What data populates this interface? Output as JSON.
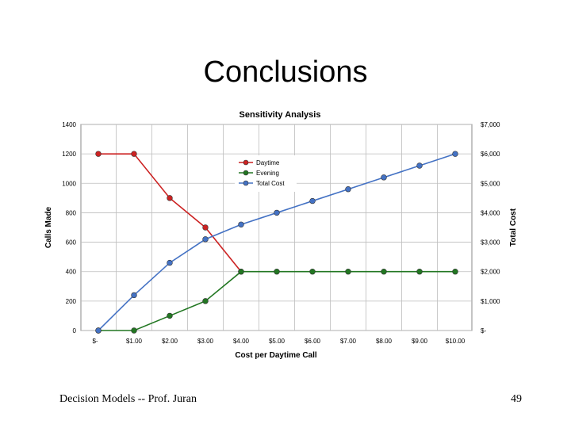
{
  "slide": {
    "title": "Conclusions",
    "footer_left": "Decision Models  --  Prof. Juran",
    "page_number": "49"
  },
  "chart_data": {
    "type": "line",
    "title": "Sensitivity Analysis",
    "xlabel": "Cost per Daytime Call",
    "ylabel": "Calls Made",
    "y2label": "Total Cost",
    "categories": [
      "$-",
      "$1.00",
      "$2.00",
      "$3.00",
      "$4.00",
      "$5.00",
      "$6.00",
      "$7.00",
      "$8.00",
      "$9.00",
      "$10.00"
    ],
    "ylim": [
      0,
      1400
    ],
    "yticks": [
      "0",
      "200",
      "400",
      "600",
      "800",
      "1000",
      "1200",
      "1400"
    ],
    "y2lim": [
      0,
      7000
    ],
    "y2ticks": [
      "$-",
      "$1,000",
      "$2,000",
      "$3,000",
      "$4,000",
      "$5,000",
      "$6,000",
      "$7,000"
    ],
    "grid": true,
    "legend_position": "center",
    "series": [
      {
        "name": "Daytime",
        "axis": "left",
        "color": "#cc2222",
        "values": [
          1200,
          1200,
          900,
          700,
          400,
          null,
          null,
          null,
          null,
          null,
          null
        ]
      },
      {
        "name": "Evening",
        "axis": "left",
        "color": "#227722",
        "values": [
          0,
          0,
          100,
          200,
          400,
          400,
          400,
          400,
          400,
          400,
          400
        ]
      },
      {
        "name": "Total Cost",
        "axis": "right",
        "color": "#4472c4",
        "values": [
          0,
          1200,
          2300,
          3100,
          3600,
          4000,
          4400,
          4800,
          5200,
          5600,
          6000
        ]
      }
    ]
  }
}
